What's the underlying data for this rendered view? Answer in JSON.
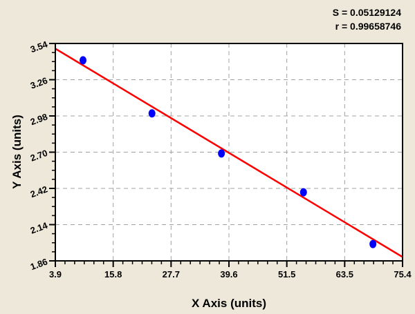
{
  "chart_data": {
    "type": "scatter",
    "title": "",
    "xlabel": "X Axis (units)",
    "ylabel": "Y Axis (units)",
    "xlim": [
      3.9,
      75.4
    ],
    "ylim": [
      1.86,
      3.54
    ],
    "xticks": [
      "3.9",
      "15.8",
      "27.7",
      "39.6",
      "51.5",
      "63.5",
      "75.4"
    ],
    "yticks": [
      "1.86",
      "2.14",
      "2.42",
      "2.70",
      "2.98",
      "3.26",
      "3.54"
    ],
    "grid": true,
    "points": {
      "x": [
        9.6,
        23.8,
        38.1,
        55.0,
        69.3
      ],
      "y": [
        3.41,
        3.0,
        2.69,
        2.39,
        1.99
      ]
    },
    "fit_line": {
      "x": [
        3.9,
        75.4
      ],
      "y": [
        3.5,
        1.89
      ]
    },
    "annotations": {
      "s": "S = 0.05129124",
      "r": "r = 0.99658746"
    },
    "colors": {
      "points": "#0000ff",
      "line": "#ff0000",
      "background": "#ede8d9",
      "grid": "#a0a0a0"
    }
  }
}
